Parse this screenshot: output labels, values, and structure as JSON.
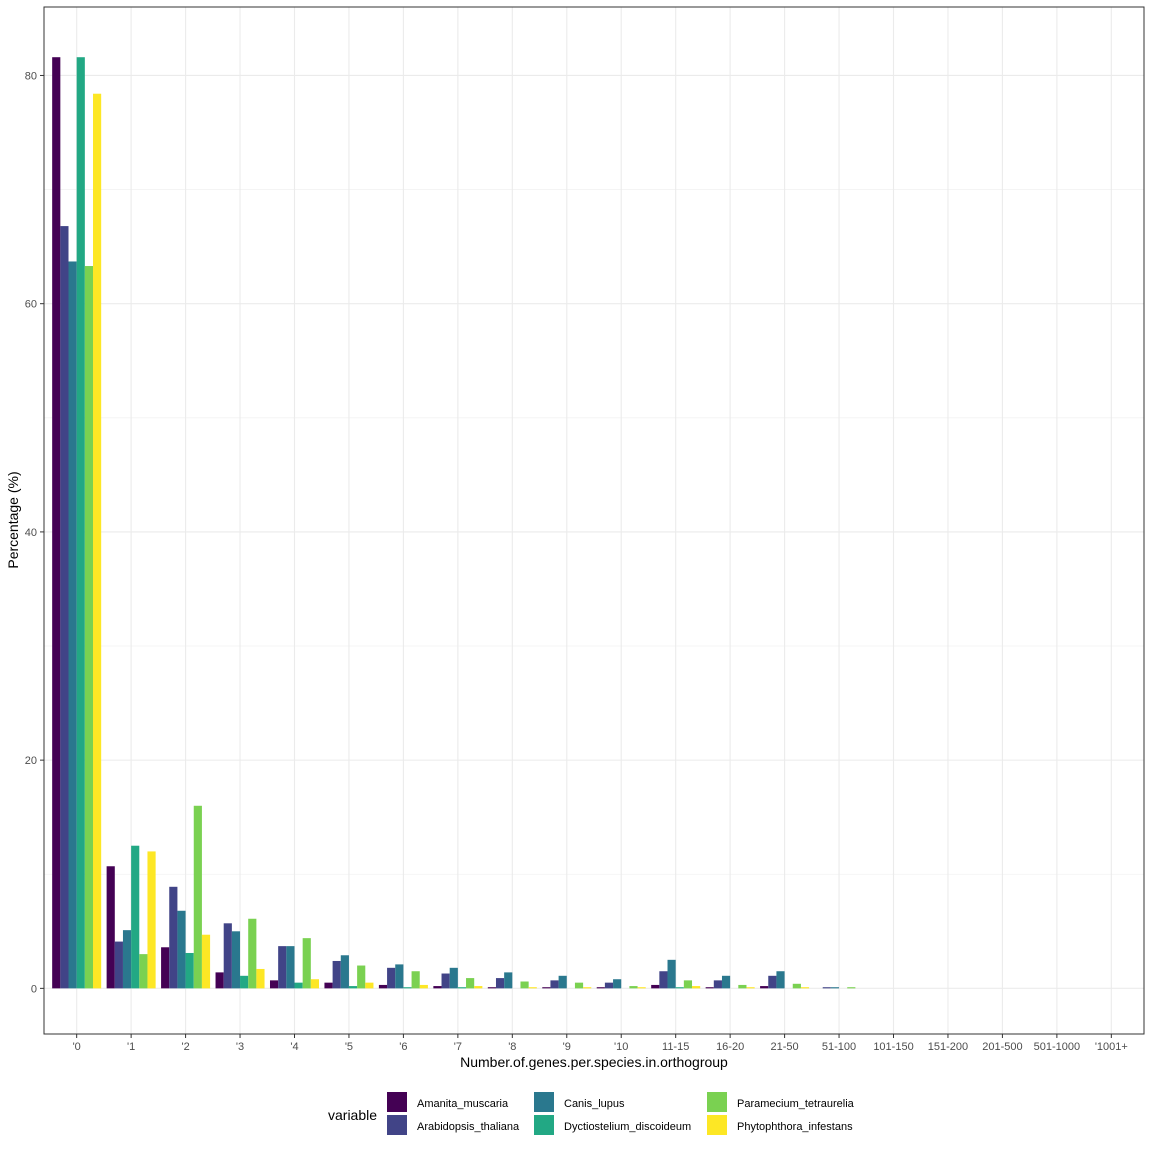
{
  "chart_data": {
    "type": "bar",
    "xlabel": "Number.of.genes.per.species.in.orthogroup",
    "ylabel": "Percentage (%)",
    "ylim": [
      -4,
      86
    ],
    "yticks": [
      0,
      20,
      40,
      60,
      80
    ],
    "grid": true,
    "legend_title": "variable",
    "legend_position": "bottom",
    "categories": [
      "'0",
      "'1",
      "'2",
      "'3",
      "'4",
      "'5",
      "'6",
      "'7",
      "'8",
      "'9",
      "'10",
      "11-15",
      "16-20",
      "21-50",
      "51-100",
      "101-150",
      "151-200",
      "201-500",
      "501-1000",
      "'1001+"
    ],
    "series": [
      {
        "name": "Amanita_muscaria",
        "color": "#440154",
        "values": [
          81.6,
          10.7,
          3.6,
          1.4,
          0.7,
          0.5,
          0.3,
          0.2,
          0.1,
          0.1,
          0.1,
          0.3,
          0.1,
          0.2,
          0.0,
          0,
          0,
          0,
          0,
          0
        ]
      },
      {
        "name": "Arabidopsis_thaliana",
        "color": "#414487",
        "values": [
          66.8,
          4.1,
          8.9,
          5.7,
          3.7,
          2.4,
          1.8,
          1.3,
          0.9,
          0.7,
          0.5,
          1.5,
          0.7,
          1.1,
          0.1,
          0,
          0,
          0,
          0,
          0
        ]
      },
      {
        "name": "Canis_lupus",
        "color": "#2A788E",
        "values": [
          63.7,
          5.1,
          6.8,
          5.0,
          3.7,
          2.9,
          2.1,
          1.8,
          1.4,
          1.1,
          0.8,
          2.5,
          1.1,
          1.5,
          0.1,
          0,
          0,
          0,
          0,
          0
        ]
      },
      {
        "name": "Dyctiostelium_discoideum",
        "color": "#22A884",
        "values": [
          81.6,
          12.5,
          3.1,
          1.1,
          0.5,
          0.2,
          0.1,
          0.1,
          0.0,
          0.0,
          0.0,
          0.1,
          0.0,
          0.0,
          0.0,
          0,
          0,
          0,
          0,
          0
        ]
      },
      {
        "name": "Paramecium_tetraurelia",
        "color": "#7AD151",
        "values": [
          63.3,
          3.0,
          16.0,
          6.1,
          4.4,
          2.0,
          1.5,
          0.9,
          0.6,
          0.5,
          0.2,
          0.7,
          0.3,
          0.4,
          0.1,
          0,
          0,
          0,
          0,
          0
        ]
      },
      {
        "name": "Phytophthora_infestans",
        "color": "#FDE725",
        "values": [
          78.4,
          12.0,
          4.7,
          1.7,
          0.8,
          0.5,
          0.3,
          0.2,
          0.1,
          0.1,
          0.1,
          0.2,
          0.1,
          0.1,
          0.0,
          0,
          0,
          0,
          0,
          0
        ]
      }
    ]
  }
}
